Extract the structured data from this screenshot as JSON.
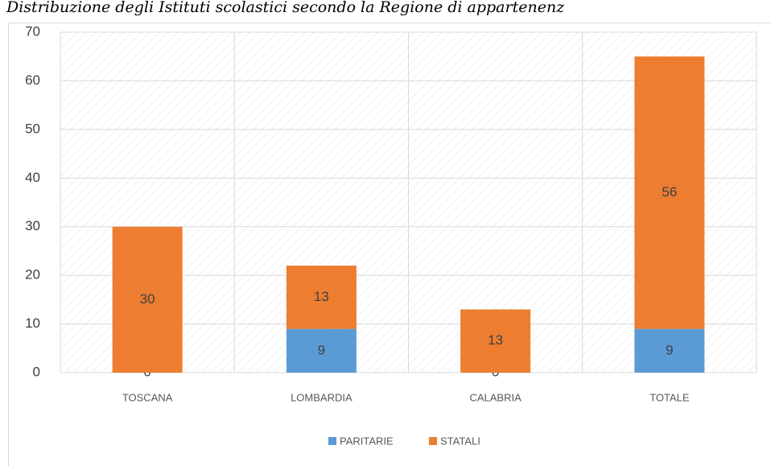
{
  "chart_data": {
    "type": "stacked_bar",
    "title": "Distribuzione degli Istituti scolastici secondo la Regione di appartenenz",
    "categories": [
      "TOSCANA",
      "LOMBARDIA",
      "CALABRIA",
      "TOTALE"
    ],
    "series": [
      {
        "name": "PARITARIE",
        "color": "#5b9bd5",
        "values": [
          0,
          9,
          0,
          9
        ]
      },
      {
        "name": "STATALI",
        "color": "#ed7d31",
        "values": [
          30,
          13,
          13,
          56
        ]
      }
    ],
    "ylim": [
      0,
      70
    ],
    "yticks": [
      0,
      10,
      20,
      30,
      40,
      50,
      60,
      70
    ],
    "grid": true,
    "legend": "bottom"
  }
}
